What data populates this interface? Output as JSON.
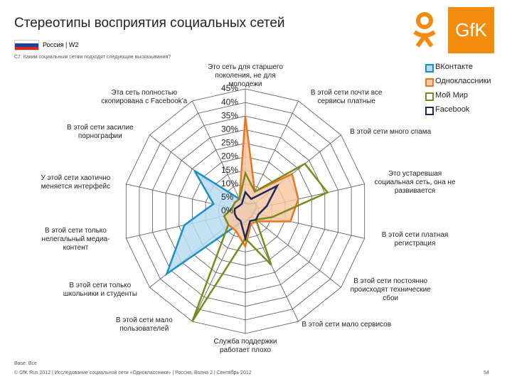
{
  "header": {
    "title": "Стереотипы восприятия социальных сетей",
    "region": "Россия | W2",
    "question": "C7. Каким социальным сетям подходят следующие высказывания?",
    "logo_text": "GfK"
  },
  "footer": {
    "base": "Base: Все",
    "copyright": "© GfK Rus 2012 | Исследование социальной сети «Одноклассники» | Россия, Волна 2 | Сентябрь 2012",
    "page": "54"
  },
  "chart_data": {
    "type": "radar",
    "categories": [
      "Это сеть для старшего поколения, не для молодежи",
      "В этой сети почти все сервисы платные",
      "В этой сети много спама",
      "Это устаревшая социальная сеть, она не развивается",
      "В этой сети платная регистрация",
      "В этой сети постоянно происходят технические сбои",
      "В этой сети мало сервисов",
      "Служба поддержки работает плохо",
      "В этой сети мало пользователей",
      "В этой сети только школьники и студенты",
      "В этой сети только нелегальный медиа-контент",
      "У этой сети хаотично меняется интерфейс",
      "В этой сети засилие порнографии",
      "Эта сеть полностью скопирована с Facebook'а"
    ],
    "series": [
      {
        "name": "ВКонтакте",
        "color": "#1a8fc9",
        "fill": "#b9dcf0",
        "values": [
          3,
          3,
          5,
          4,
          3,
          3,
          3,
          4,
          5,
          37,
          23,
          12,
          24,
          5
        ]
      },
      {
        "name": "Одноклассники",
        "color": "#e87722",
        "fill": "#f8c8a4",
        "values": [
          35,
          8,
          22,
          20,
          17,
          6,
          5,
          13,
          8,
          8,
          8,
          5,
          5,
          5
        ]
      },
      {
        "name": "Мой Мир",
        "color": "#7a8a1a",
        "values": [
          14,
          8,
          28,
          31,
          10,
          5,
          22,
          10,
          45,
          8,
          8,
          5,
          5,
          5
        ]
      },
      {
        "name": "Facebook",
        "color": "#1c2a5a",
        "values": [
          7,
          5,
          15,
          8,
          5,
          5,
          4,
          10,
          4,
          4,
          4,
          4,
          3,
          3
        ]
      }
    ],
    "ylim": [
      0,
      45
    ],
    "yticks": [
      {
        "value": 0,
        "label": "0%"
      },
      {
        "value": 5,
        "label": "5%"
      },
      {
        "value": 10,
        "label": "10%"
      },
      {
        "value": 15,
        "label": "15%"
      },
      {
        "value": 20,
        "label": "20%"
      },
      {
        "value": 25,
        "label": "25%"
      },
      {
        "value": 30,
        "label": "30%"
      },
      {
        "value": 35,
        "label": "35%"
      },
      {
        "value": 40,
        "label": "40%"
      },
      {
        "value": 45,
        "label": "45%"
      }
    ],
    "grid": true
  }
}
